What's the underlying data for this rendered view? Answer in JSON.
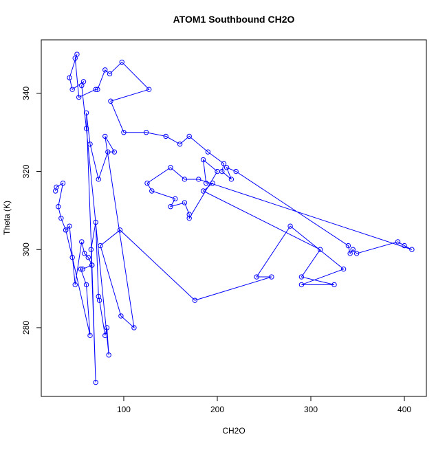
{
  "chart_data": {
    "type": "line",
    "markers": true,
    "title": "ATOM1 Southbound CH2O",
    "x_label": "CH2O",
    "y_label": "Theta (K)",
    "color": "#0000ff",
    "x": [
      27,
      28,
      35,
      30,
      33,
      38,
      42,
      48,
      55,
      58,
      62,
      66,
      70,
      65,
      70,
      73,
      74,
      80,
      82,
      84,
      60,
      55,
      57,
      45,
      42,
      50,
      48,
      52,
      70,
      72,
      80,
      85,
      98,
      127,
      86,
      100,
      124,
      145,
      160,
      170,
      190,
      207,
      205,
      215,
      210,
      220,
      340,
      342,
      345,
      349,
      393,
      400,
      408,
      180,
      165,
      150,
      125,
      130,
      155,
      150,
      165,
      170,
      170,
      200,
      185,
      188,
      195,
      185,
      310,
      290,
      325,
      290,
      335,
      278,
      242,
      258,
      176,
      96,
      75,
      97,
      111,
      80,
      90,
      83,
      73,
      64,
      60,
      66,
      56,
      54,
      60,
      64,
      45,
      38
    ],
    "values": [
      315,
      316,
      317,
      311,
      308,
      305,
      306,
      291,
      302,
      299,
      298,
      296,
      266,
      300,
      307,
      288,
      287,
      278,
      280,
      273,
      331,
      342,
      343,
      341,
      344,
      350,
      349,
      339,
      341,
      341,
      346,
      345,
      348,
      341,
      338,
      330,
      330,
      329,
      327,
      329,
      325,
      322,
      320,
      318,
      321,
      320,
      301,
      299,
      300,
      299,
      302,
      301,
      300,
      318,
      318,
      321,
      317,
      315,
      313,
      311,
      312,
      309,
      308,
      320,
      323,
      317,
      317,
      315,
      300,
      293,
      291,
      291,
      295,
      306,
      293,
      293,
      287,
      305,
      301,
      283,
      280,
      329,
      325,
      325,
      318,
      327,
      335,
      296,
      295,
      295,
      291,
      278,
      298,
      305
    ],
    "xlim": [
      11.8,
      423.5
    ],
    "ylim": [
      262.4,
      353.7
    ],
    "xticks": [
      100,
      200,
      300,
      400
    ],
    "yticks": [
      280,
      300,
      320,
      340
    ]
  }
}
